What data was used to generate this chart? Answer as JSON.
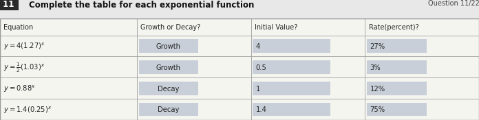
{
  "title": "Complete the table for each exponential function",
  "question_label": "11",
  "question_num": "Question 11/22",
  "headers": [
    "Equation",
    "Growth or Decay?",
    "Initial Value?",
    "Rate(percent)?"
  ],
  "equations_render": [
    "y = 4(1.27)^{x}",
    "y = \\frac{1}{2}(1.03)^{x}",
    "y = 0.88^{x}",
    "y = 1.4(0.25)^{x}"
  ],
  "col2_values": [
    "Growth",
    "Growth",
    "Decay",
    "Decay"
  ],
  "col3_values": [
    "4",
    "0.5",
    "1",
    "1.4"
  ],
  "col4_values": [
    "27%",
    "3%",
    "12%",
    "75%"
  ],
  "page_bg": "#e8e8e8",
  "table_bg": "#f5f5f0",
  "header_row_bg": "#f5f5f0",
  "data_cell_bg": "#c8cfd8",
  "equation_col_bg": "#f5f5f0",
  "border_color": "#999999",
  "text_color": "#222222",
  "title_color": "#111111",
  "label_box_bg": "#2a2a2a",
  "label_box_fg": "#ffffff"
}
